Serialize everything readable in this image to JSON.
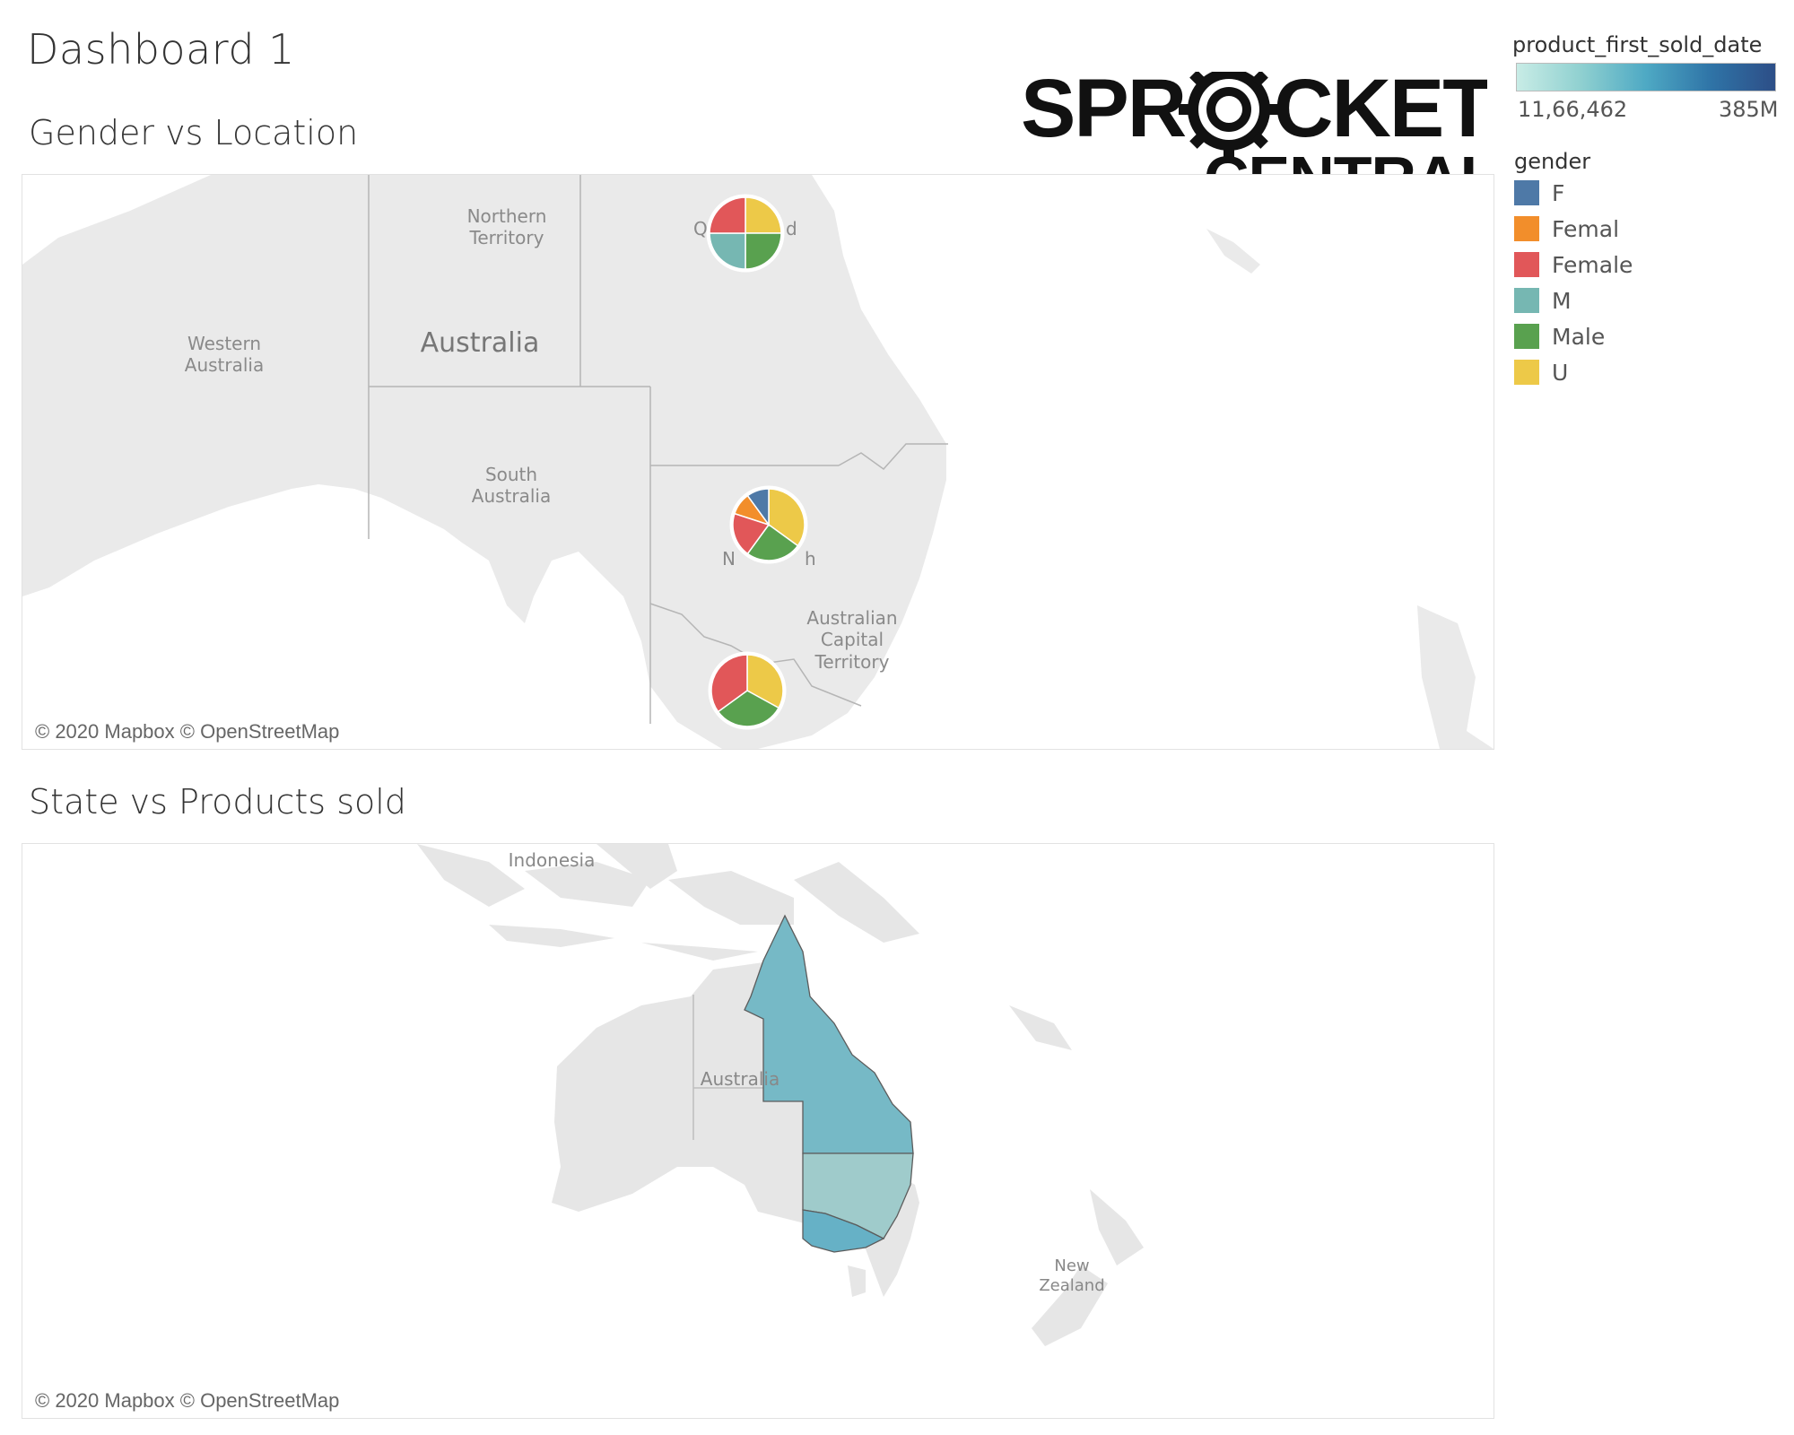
{
  "dashboard": {
    "title": "Dashboard 1"
  },
  "logo": {
    "line1": "SPROCKET",
    "line2": "CENTRAL"
  },
  "color_legend": {
    "title": "product_first_sold_date",
    "min_label": "11,66,462",
    "max_label": "385M",
    "min_color": "#c8ece6",
    "max_color": "#2d4e87"
  },
  "gender_legend": {
    "title": "gender",
    "items": [
      {
        "label": "F",
        "color": "#4e79a7"
      },
      {
        "label": "Femal",
        "color": "#f28e2b"
      },
      {
        "label": "Female",
        "color": "#e15759"
      },
      {
        "label": "M",
        "color": "#76b7b2"
      },
      {
        "label": "Male",
        "color": "#59a14f"
      },
      {
        "label": "U",
        "color": "#edc948"
      }
    ]
  },
  "map1": {
    "title": "Gender vs Location",
    "attribution": "© 2020 Mapbox © OpenStreetMap",
    "labels": {
      "nt": "Northern Territory",
      "wa": "Western Australia",
      "australia": "Australia",
      "sa": "South Australia",
      "act": "Australian Capital Territory",
      "qld_left": "Q",
      "qld_right": "d",
      "nsw_left": "N",
      "nsw_right": "h"
    }
  },
  "map2": {
    "title": "State vs Products sold",
    "attribution": "© 2020 Mapbox © OpenStreetMap",
    "labels": {
      "indonesia": "Indonesia",
      "australia": "Australia",
      "nz": "New Zealand"
    },
    "state_colors": {
      "qld": "#76b9c6",
      "nsw": "#9fcbcb",
      "vic": "#66b1c6"
    }
  },
  "chart_data": [
    {
      "type": "pie",
      "chart": "Gender vs Location",
      "pies": [
        {
          "state": "QLD",
          "segments": [
            {
              "gender": "Female",
              "value": 25
            },
            {
              "gender": "M",
              "value": 25
            },
            {
              "gender": "Male",
              "value": 25
            },
            {
              "gender": "U",
              "value": 25
            }
          ]
        },
        {
          "state": "NSW",
          "segments": [
            {
              "gender": "F",
              "value": 10
            },
            {
              "gender": "Femal",
              "value": 10
            },
            {
              "gender": "Female",
              "value": 20
            },
            {
              "gender": "Male",
              "value": 25
            },
            {
              "gender": "U",
              "value": 35
            }
          ]
        },
        {
          "state": "VIC",
          "segments": [
            {
              "gender": "Female",
              "value": 35
            },
            {
              "gender": "Male",
              "value": 32
            },
            {
              "gender": "U",
              "value": 33
            }
          ]
        }
      ]
    }
  ]
}
